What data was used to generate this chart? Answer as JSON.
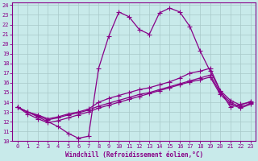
{
  "xlabel": "Windchill (Refroidissement éolien,°C)",
  "xlim": [
    -0.5,
    23.5
  ],
  "ylim": [
    10,
    24.3
  ],
  "yticks": [
    10,
    11,
    12,
    13,
    14,
    15,
    16,
    17,
    18,
    19,
    20,
    21,
    22,
    23,
    24
  ],
  "xticks": [
    0,
    1,
    2,
    3,
    4,
    5,
    6,
    7,
    8,
    9,
    10,
    11,
    12,
    13,
    14,
    15,
    16,
    17,
    18,
    19,
    20,
    21,
    22,
    23
  ],
  "bg_color": "#c8eaea",
  "grid_color": "#a8c8c8",
  "line_color": "#880088",
  "lines": [
    {
      "x": [
        0,
        1,
        2,
        3,
        4,
        5,
        6,
        7,
        8,
        9,
        10,
        11,
        12,
        13,
        14,
        15,
        16,
        17,
        18,
        19,
        20,
        21,
        22,
        23
      ],
      "y": [
        13.5,
        13.0,
        12.5,
        12.0,
        11.5,
        10.8,
        10.3,
        10.5,
        17.5,
        20.8,
        23.3,
        22.8,
        21.5,
        21.0,
        23.2,
        23.7,
        23.3,
        21.8,
        19.3,
        17.2,
        15.2,
        13.5,
        13.8,
        14.0
      ],
      "style": "-",
      "marker": "+",
      "markersize": 4,
      "linewidth": 0.9
    },
    {
      "x": [
        0,
        1,
        2,
        3,
        4,
        5,
        6,
        7,
        8,
        9,
        10,
        11,
        12,
        13,
        14,
        15,
        16,
        17,
        18,
        19,
        20,
        21,
        22,
        23
      ],
      "y": [
        13.5,
        13.0,
        12.7,
        12.3,
        12.5,
        12.8,
        13.0,
        13.3,
        14.0,
        14.4,
        14.7,
        15.0,
        15.3,
        15.5,
        15.8,
        16.1,
        16.5,
        17.0,
        17.2,
        17.5,
        15.2,
        14.2,
        13.7,
        14.1
      ],
      "style": "-",
      "marker": "+",
      "markersize": 4,
      "linewidth": 0.9
    },
    {
      "x": [
        0,
        1,
        2,
        3,
        4,
        5,
        6,
        7,
        8,
        9,
        10,
        11,
        12,
        13,
        14,
        15,
        16,
        17,
        18,
        19,
        20,
        21,
        22,
        23
      ],
      "y": [
        13.5,
        13.0,
        12.6,
        12.2,
        12.4,
        12.7,
        12.9,
        13.2,
        13.6,
        13.9,
        14.2,
        14.5,
        14.8,
        15.0,
        15.3,
        15.6,
        15.9,
        16.2,
        16.5,
        16.8,
        15.0,
        14.0,
        13.5,
        13.9
      ],
      "style": "-",
      "marker": "+",
      "markersize": 4,
      "linewidth": 0.9
    },
    {
      "x": [
        0,
        1,
        2,
        3,
        4,
        5,
        6,
        7,
        8,
        9,
        10,
        11,
        12,
        13,
        14,
        15,
        16,
        17,
        18,
        19,
        20,
        21,
        22,
        23
      ],
      "y": [
        13.5,
        12.8,
        12.3,
        11.9,
        12.1,
        12.4,
        12.7,
        13.0,
        13.4,
        13.7,
        14.0,
        14.3,
        14.6,
        14.9,
        15.2,
        15.5,
        15.8,
        16.1,
        16.3,
        16.6,
        14.8,
        13.8,
        13.4,
        13.8
      ],
      "style": "-",
      "marker": "+",
      "markersize": 4,
      "linewidth": 0.9
    }
  ],
  "tick_fontsize": 5,
  "xlabel_fontsize": 5.5,
  "spine_color": "#880088",
  "tick_color": "#880088"
}
